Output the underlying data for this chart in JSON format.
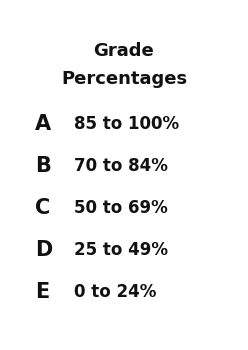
{
  "title_line1": "Grade",
  "title_line2": "Percentages",
  "grades": [
    "A",
    "B",
    "C",
    "D",
    "E"
  ],
  "ranges": [
    "85 to 100%",
    "70 to 84%",
    "50 to 69%",
    "25 to 49%",
    "0 to 24%"
  ],
  "background_color": "#ffffff",
  "text_color": "#111111",
  "title_fontsize": 13,
  "grade_fontsize": 15,
  "range_fontsize": 12
}
